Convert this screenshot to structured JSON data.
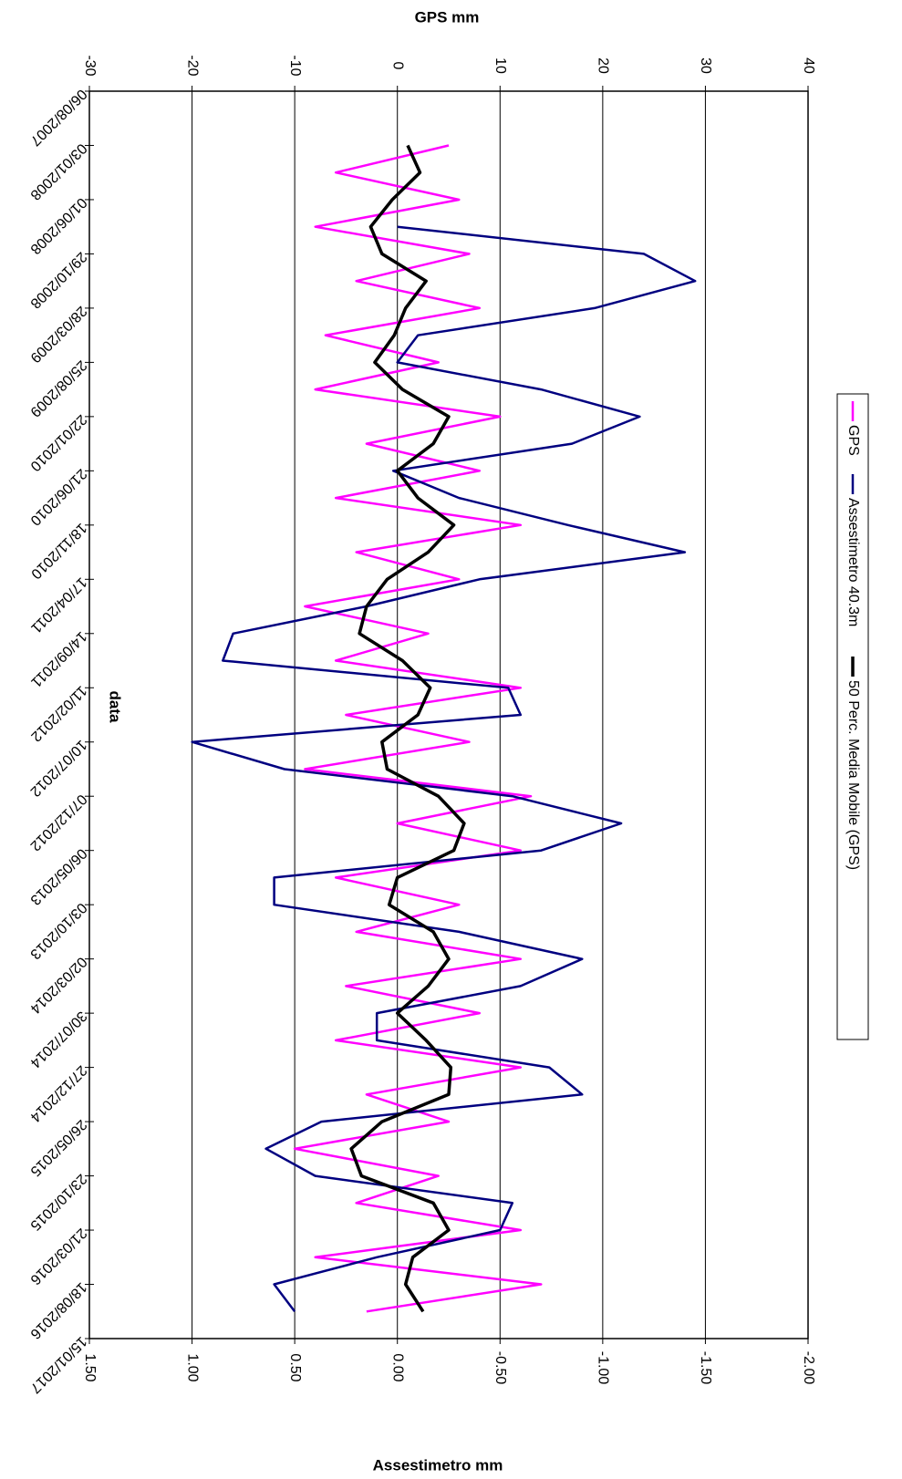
{
  "chart_data": {
    "type": "line",
    "x_label": "data",
    "y_label": "GPS mm",
    "y2_label": "Assestimetro mm",
    "xlim": [
      "2007-08-06",
      "2017-01-15"
    ],
    "xticks": [
      {
        "value": "2007-08-06",
        "label": "06/08/2007"
      },
      {
        "value": "2008-01-03",
        "label": "03/01/2008"
      },
      {
        "value": "2008-06-01",
        "label": "01/06/2008"
      },
      {
        "value": "2008-10-29",
        "label": "29/10/2008"
      },
      {
        "value": "2009-03-28",
        "label": "28/03/2009"
      },
      {
        "value": "2009-08-25",
        "label": "25/08/2009"
      },
      {
        "value": "2010-01-22",
        "label": "22/01/2010"
      },
      {
        "value": "2010-06-21",
        "label": "21/06/2010"
      },
      {
        "value": "2010-11-18",
        "label": "18/11/2010"
      },
      {
        "value": "2011-04-17",
        "label": "17/04/2011"
      },
      {
        "value": "2011-09-14",
        "label": "14/09/2011"
      },
      {
        "value": "2012-02-11",
        "label": "11/02/2012"
      },
      {
        "value": "2012-07-10",
        "label": "10/07/2012"
      },
      {
        "value": "2012-12-07",
        "label": "07/12/2012"
      },
      {
        "value": "2013-05-06",
        "label": "06/05/2013"
      },
      {
        "value": "2013-10-03",
        "label": "03/10/2013"
      },
      {
        "value": "2014-03-02",
        "label": "02/03/2014"
      },
      {
        "value": "2014-07-30",
        "label": "30/07/2014"
      },
      {
        "value": "2014-12-27",
        "label": "27/12/2014"
      },
      {
        "value": "2015-05-26",
        "label": "26/05/2015"
      },
      {
        "value": "2015-10-23",
        "label": "23/10/2015"
      },
      {
        "value": "2016-03-21",
        "label": "21/03/2016"
      },
      {
        "value": "2016-08-18",
        "label": "18/08/2016"
      },
      {
        "value": "2017-01-15",
        "label": "15/01/2017"
      }
    ],
    "ylim": [
      -30,
      40
    ],
    "yticks": [
      -30,
      -20,
      -10,
      0,
      10,
      20,
      30,
      40
    ],
    "y2lim": [
      1.5,
      -2.0
    ],
    "y2ticks": [
      {
        "value": 1.5,
        "label": "1.50"
      },
      {
        "value": 1.0,
        "label": "1.00"
      },
      {
        "value": 0.5,
        "label": "0.50"
      },
      {
        "value": 0,
        "label": "0.00"
      },
      {
        "value": -0.5,
        "label": "-0.50"
      },
      {
        "value": -1.0,
        "label": "-1.00"
      },
      {
        "value": -1.5,
        "label": "-1.50"
      },
      {
        "value": -2.0,
        "label": "-2.00"
      }
    ],
    "grid": true,
    "legend": "right",
    "x": [
      "2007-08-06",
      "2007-10-20",
      "2008-01-03",
      "2008-03-18",
      "2008-06-01",
      "2008-08-15",
      "2008-10-29",
      "2009-01-12",
      "2009-03-28",
      "2009-06-11",
      "2009-08-25",
      "2009-11-08",
      "2010-01-22",
      "2010-04-07",
      "2010-06-21",
      "2010-09-04",
      "2010-11-18",
      "2011-02-01",
      "2011-04-17",
      "2011-07-01",
      "2011-09-14",
      "2011-11-28",
      "2012-02-11",
      "2012-04-26",
      "2012-07-10",
      "2012-09-23",
      "2012-12-07",
      "2013-02-20",
      "2013-05-06",
      "2013-07-20",
      "2013-10-03",
      "2013-12-17",
      "2014-03-02",
      "2014-05-16",
      "2014-07-30",
      "2014-10-13",
      "2014-12-27",
      "2015-03-12",
      "2015-05-26",
      "2015-08-09",
      "2015-10-23",
      "2016-01-06",
      "2016-03-21",
      "2016-06-04",
      "2016-08-18",
      "2016-11-01",
      "2017-01-15"
    ],
    "series": [
      {
        "name": "GPS",
        "color": "#ff00ff",
        "width": 2.5,
        "values": [
          null,
          null,
          5,
          -6,
          6,
          -8,
          7,
          -4,
          8,
          -7,
          4,
          -8,
          10,
          -3,
          8,
          -6,
          12,
          -4,
          6,
          -9,
          3,
          -6,
          12,
          -5,
          7,
          -9,
          13,
          0,
          12,
          -6,
          6,
          -4,
          12,
          -5,
          8,
          -6,
          12,
          -3,
          5,
          -10,
          4,
          -4,
          12,
          -8,
          14,
          -3,
          null
        ]
      },
      {
        "name": "Assestimetro 40.3m",
        "color": "#000080",
        "width": 2.5,
        "axis": "y2",
        "values": [
          null,
          null,
          null,
          null,
          null,
          0.0,
          -1.2,
          -1.45,
          -0.96,
          -0.1,
          0.0,
          -0.7,
          -1.18,
          -0.85,
          0.02,
          -0.3,
          -0.83,
          -1.4,
          -0.4,
          0.15,
          0.8,
          0.85,
          -0.54,
          -0.6,
          1.0,
          0.55,
          -0.56,
          -1.09,
          -0.7,
          0.6,
          0.6,
          -0.3,
          -0.9,
          -0.6,
          0.1,
          0.1,
          -0.74,
          -0.9,
          0.37,
          0.64,
          0.4,
          -0.56,
          -0.5,
          0.1,
          0.6,
          0.5,
          null
        ]
      },
      {
        "name": "50 Perc. Media Mobile (GPS)",
        "color": "#000000",
        "width": 3.5,
        "values": [
          null,
          null,
          1.0,
          2.2,
          -0.5,
          -2.6,
          -1.5,
          2.8,
          0.8,
          -0.3,
          -2.2,
          0.5,
          5.0,
          3.5,
          0,
          2.0,
          5.5,
          3.0,
          -1.0,
          -3.0,
          -3.7,
          0.5,
          3.2,
          2.0,
          -1.5,
          -1.0,
          4.0,
          6.5,
          5.5,
          0.0,
          -0.8,
          3.5,
          5.0,
          3.0,
          0.0,
          2.8,
          5.2,
          5.0,
          -1.5,
          -4.5,
          -3.5,
          3.5,
          5.0,
          1.5,
          0.8,
          2.5,
          null
        ]
      }
    ]
  }
}
